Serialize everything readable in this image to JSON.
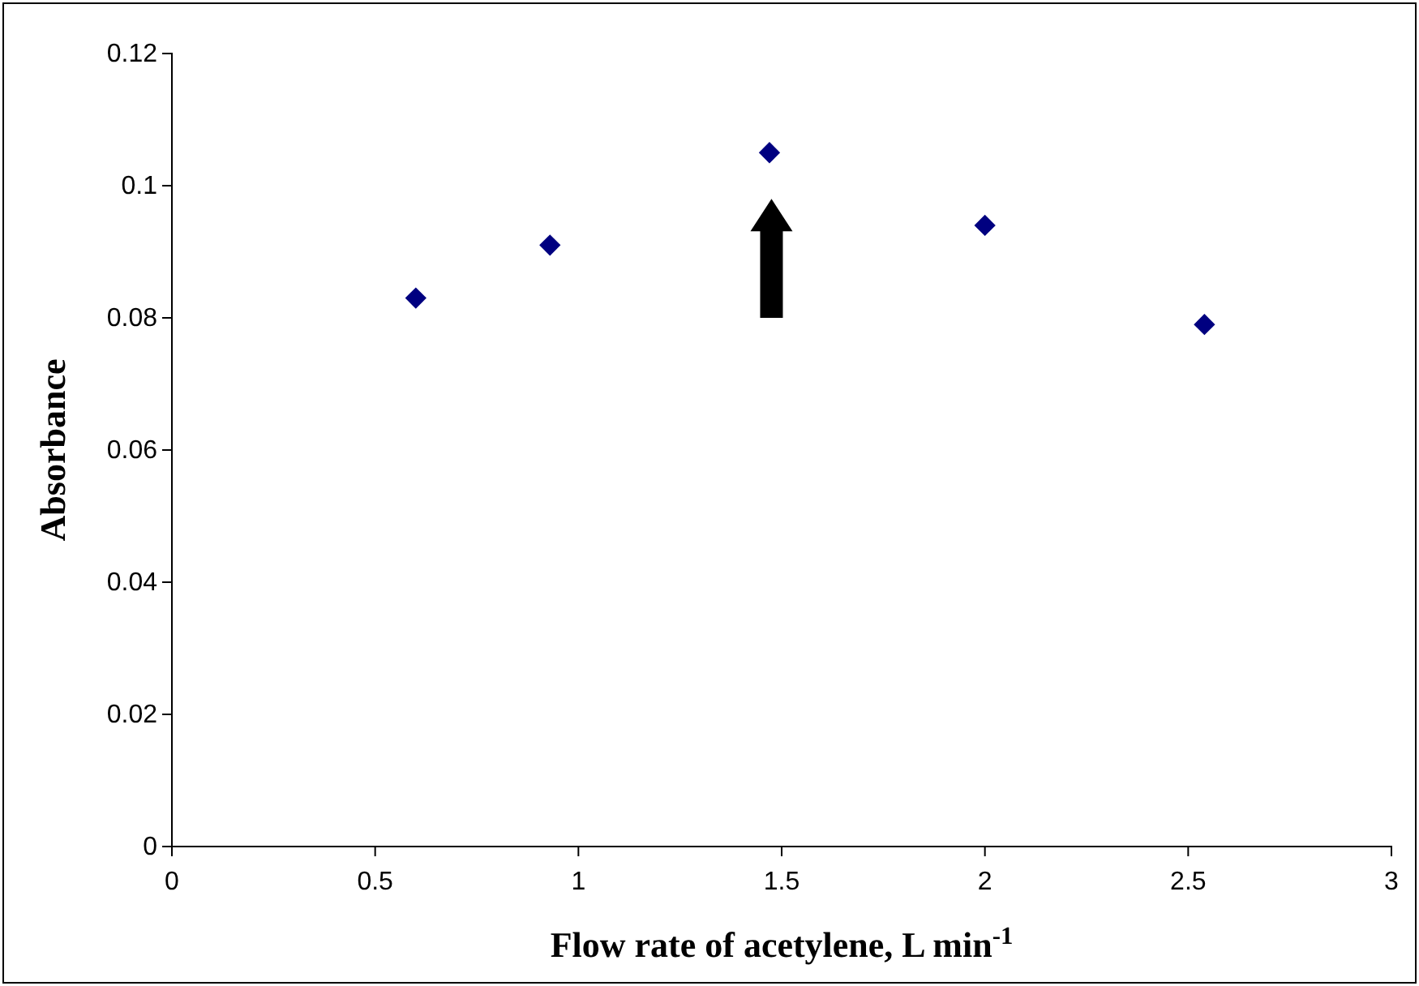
{
  "chart_data": {
    "type": "scatter",
    "xlabel": "Flow rate of acetylene, L min$^{-1}$",
    "ylabel": "Absorbance",
    "x": [
      0.6,
      0.93,
      1.47,
      2.0,
      2.54
    ],
    "series": [
      {
        "color": "#000080",
        "values": [
          0.083,
          0.091,
          0.105,
          0.094,
          0.079
        ]
      }
    ],
    "marker": "diamond",
    "xlim": [
      0,
      3
    ],
    "xticks": [
      0,
      0.5,
      1,
      1.5,
      2,
      2.5,
      3
    ],
    "ylim": [
      0,
      0.12
    ],
    "yticks": [
      0,
      0.02,
      0.04,
      0.06,
      0.08,
      0.1,
      0.12
    ],
    "grid": false
  }
}
